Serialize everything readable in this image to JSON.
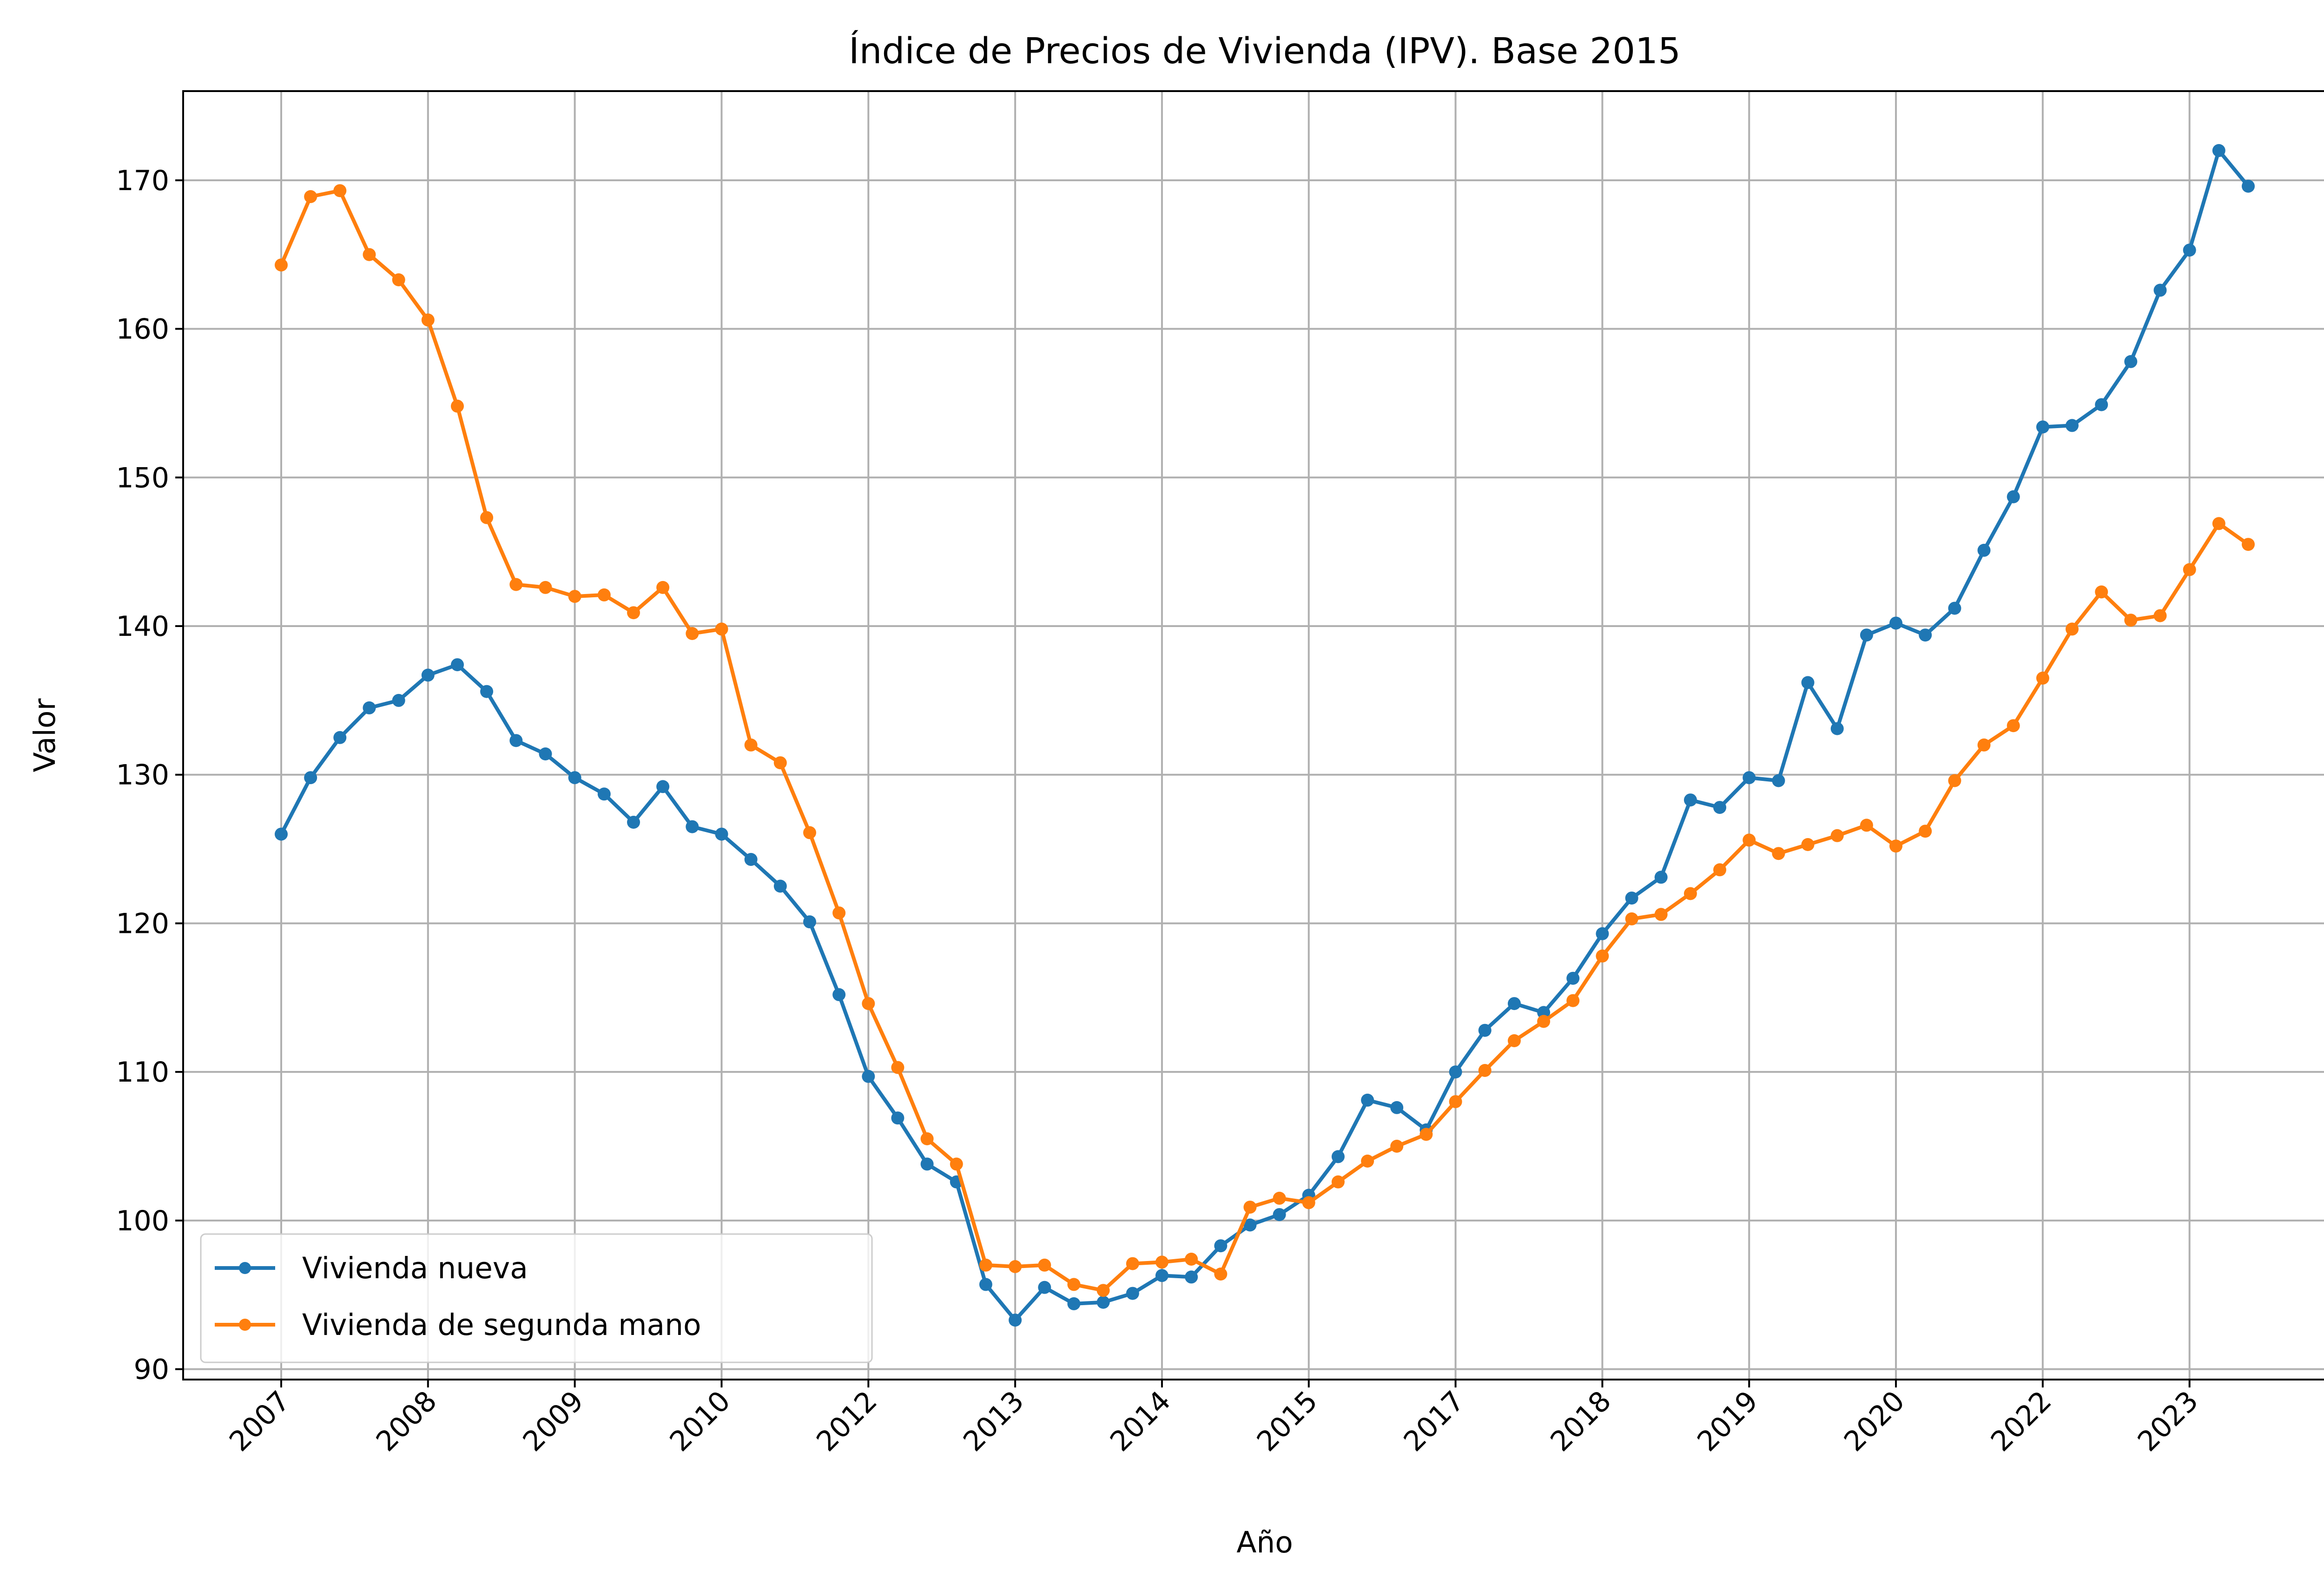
{
  "chart_data": {
    "type": "line",
    "title": "Índice de Precios de Vivienda (IPV). Base 2015",
    "xlabel": "Año",
    "ylabel": "Valor",
    "ylim": [
      89.3,
      176
    ],
    "yticks": [
      90,
      100,
      110,
      120,
      130,
      140,
      150,
      160,
      170
    ],
    "xtick_labels": [
      "2007",
      "2008",
      "2009",
      "2010",
      "2012",
      "2013",
      "2014",
      "2015",
      "2017",
      "2018",
      "2019",
      "2020",
      "2022",
      "2023"
    ],
    "grid": true,
    "legend_position": "lower-left",
    "series": [
      {
        "name": "Vivienda nueva",
        "color": "#1f77b4",
        "values": [
          126.0,
          129.8,
          132.5,
          134.5,
          135.0,
          136.7,
          137.4,
          135.6,
          132.3,
          131.4,
          129.8,
          128.7,
          126.8,
          129.2,
          126.5,
          126.0,
          124.3,
          122.5,
          120.1,
          115.2,
          109.7,
          106.9,
          103.8,
          102.6,
          95.7,
          93.3,
          95.5,
          94.4,
          94.5,
          95.1,
          96.3,
          96.2,
          98.3,
          99.7,
          100.4,
          101.7,
          104.3,
          108.1,
          107.6,
          106.1,
          110.0,
          112.8,
          114.6,
          114.0,
          116.3,
          119.3,
          121.7,
          123.1,
          128.3,
          127.8,
          129.8,
          129.6,
          136.2,
          133.1,
          139.4,
          140.2,
          139.4,
          141.2,
          145.1,
          148.7,
          153.4,
          153.5,
          154.9,
          157.8,
          162.6,
          165.3,
          172.0,
          169.6
        ]
      },
      {
        "name": "Vivienda de segunda mano",
        "color": "#ff7f0e",
        "values": [
          164.3,
          168.9,
          169.3,
          165.0,
          163.3,
          160.6,
          154.8,
          147.3,
          142.8,
          142.6,
          142.0,
          142.1,
          140.9,
          142.6,
          139.5,
          139.8,
          132.0,
          130.8,
          126.1,
          120.7,
          114.6,
          110.3,
          105.5,
          103.8,
          97.0,
          96.9,
          97.0,
          95.7,
          95.3,
          97.1,
          97.2,
          97.4,
          96.4,
          100.9,
          101.5,
          101.2,
          102.6,
          104.0,
          105.0,
          105.8,
          108.0,
          110.1,
          112.1,
          113.4,
          114.8,
          117.8,
          120.3,
          120.6,
          122.0,
          123.6,
          125.6,
          124.7,
          125.3,
          125.9,
          126.6,
          125.2,
          126.2,
          129.6,
          132.0,
          133.3,
          136.5,
          139.8,
          142.3,
          140.4,
          140.7,
          143.8,
          146.9,
          145.5
        ]
      }
    ]
  }
}
